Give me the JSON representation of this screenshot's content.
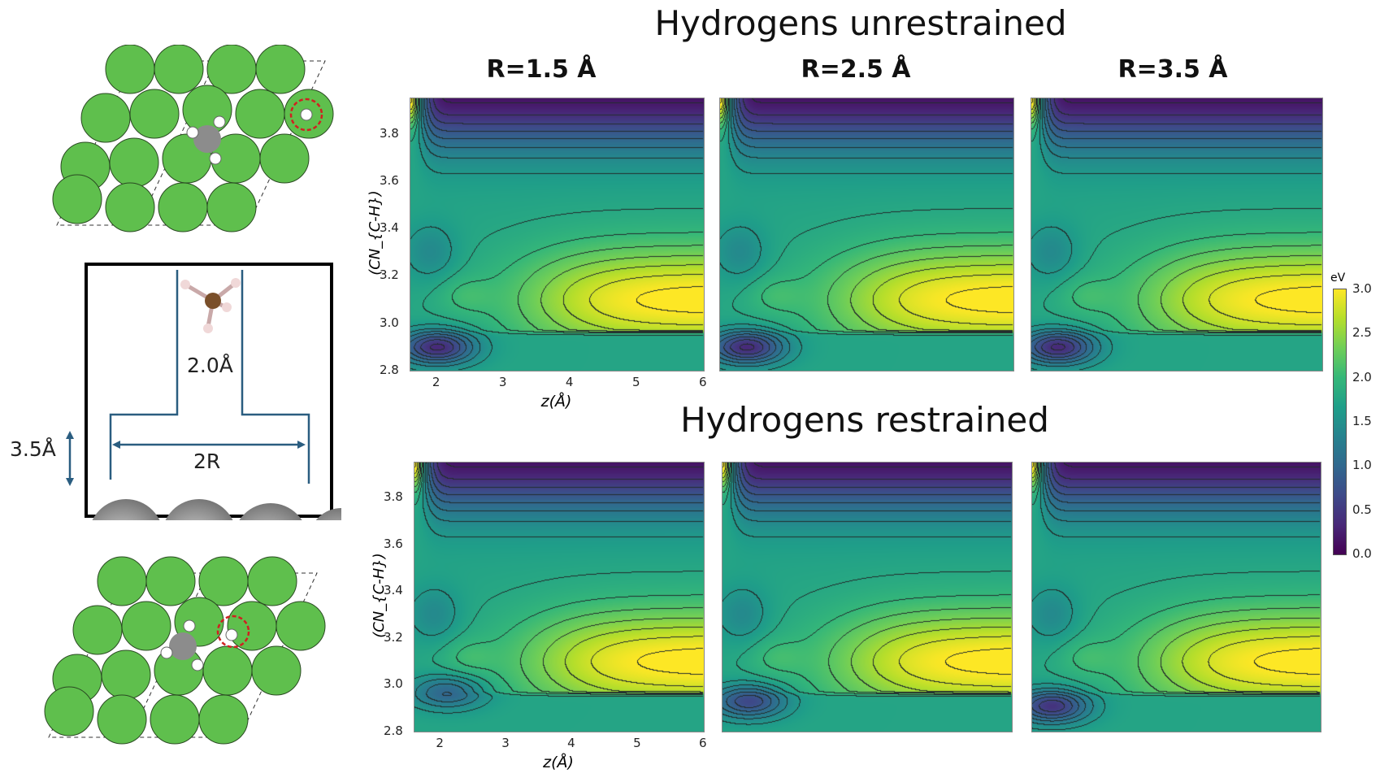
{
  "titles": {
    "top": "Hydrogens unrestrained",
    "bottom": "Hydrogens restrained"
  },
  "diagram": {
    "height_label": "3.5Å",
    "gap_label": "2.0Å",
    "width_label": "2R"
  },
  "colorbar": {
    "label": "eV",
    "ticks": [
      "3.0",
      "2.5",
      "2.0",
      "1.5",
      "1.0",
      "0.5",
      "0.0"
    ],
    "range": [
      0.0,
      3.0
    ],
    "colormap": "viridis"
  },
  "chart_data": [
    {
      "type": "heatmap",
      "row": "Hydrogens unrestrained",
      "title": "R=1.5 Å",
      "xlabel": "z(Å)",
      "ylabel": "(CN_{C-H})",
      "xlim": [
        1.6,
        6
      ],
      "ylim": [
        2.8,
        3.95
      ],
      "xticks": [
        "2",
        "3",
        "4",
        "5",
        "6"
      ],
      "yticks": [
        "2.8",
        "3.0",
        "3.2",
        "3.4",
        "3.6",
        "3.8"
      ],
      "contours": true,
      "minimum": {
        "z": 2.0,
        "cn": 2.9
      },
      "maximum_region": {
        "z": [
          5,
          6
        ],
        "cn": [
          3.05,
          3.15
        ],
        "value": 3.0
      }
    },
    {
      "type": "heatmap",
      "row": "Hydrogens unrestrained",
      "title": "R=2.5 Å",
      "xlim": [
        1.6,
        6
      ],
      "ylim": [
        2.8,
        3.95
      ],
      "contours": true,
      "minimum": {
        "z": 2.0,
        "cn": 2.9
      }
    },
    {
      "type": "heatmap",
      "row": "Hydrogens unrestrained",
      "title": "R=3.5 Å",
      "xlim": [
        1.6,
        6
      ],
      "ylim": [
        2.8,
        3.95
      ],
      "contours": true,
      "minimum": {
        "z": 2.0,
        "cn": 2.9
      }
    },
    {
      "type": "heatmap",
      "row": "Hydrogens restrained",
      "xlabel": "z(Å)",
      "ylabel": "(CN_{C-H})",
      "xlim": [
        1.6,
        6
      ],
      "ylim": [
        2.8,
        3.95
      ],
      "xticks": [
        "2",
        "3",
        "4",
        "5",
        "6"
      ],
      "yticks": [
        "2.8",
        "3.0",
        "3.2",
        "3.4",
        "3.6",
        "3.8"
      ],
      "contours": true,
      "minimum": {
        "z": 2.1,
        "cn": 2.97
      }
    },
    {
      "type": "heatmap",
      "row": "Hydrogens restrained",
      "xlim": [
        1.6,
        6
      ],
      "ylim": [
        2.8,
        3.95
      ],
      "contours": true,
      "minimum": {
        "z": 2.0,
        "cn": 2.93
      }
    },
    {
      "type": "heatmap",
      "row": "Hydrogens restrained",
      "xlim": [
        1.6,
        6
      ],
      "ylim": [
        2.8,
        3.95
      ],
      "contours": true,
      "minimum": {
        "z": 1.9,
        "cn": 2.91
      }
    }
  ]
}
